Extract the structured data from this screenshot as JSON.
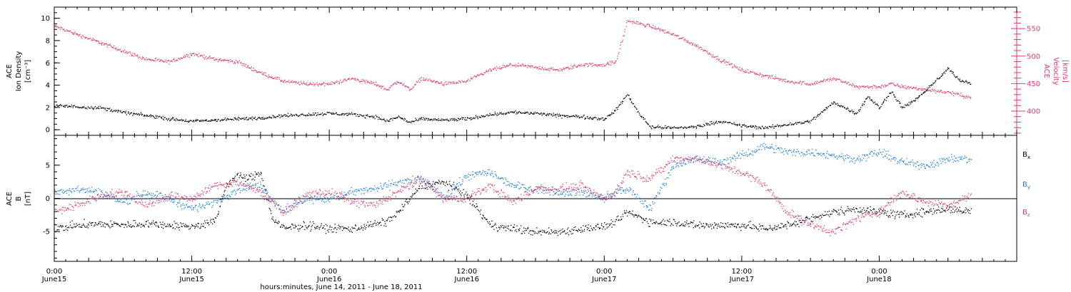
{
  "chart_data": [
    {
      "type": "scatter",
      "panel": "top",
      "ylabel_left": [
        "ACE",
        "Ion Density",
        "[cm⁻³]"
      ],
      "ylabel_right": [
        "ACE",
        "Velocity",
        "[km/s]"
      ],
      "x_range_hours": [
        0,
        84
      ],
      "left_ylim": [
        -0.5,
        11
      ],
      "left_yticks": [
        0,
        2,
        4,
        6,
        8,
        10
      ],
      "right_ylim": [
        356,
        589
      ],
      "right_yticks": [
        400,
        450,
        500,
        550
      ],
      "colors": {
        "density": "#000000",
        "velocity": "#e8376b"
      },
      "series": [
        {
          "name": "",
          "axis": "left",
          "x": [
            0,
            2,
            4,
            6,
            8,
            9,
            10,
            12,
            14,
            16,
            18,
            20,
            22,
            24,
            26,
            28,
            29,
            30,
            31,
            32,
            34,
            36,
            38,
            40,
            42,
            44,
            46,
            48,
            49,
            50,
            51,
            52,
            54,
            56,
            58,
            60,
            62,
            64,
            66,
            68,
            70,
            71,
            72,
            73,
            74,
            75.5,
            77,
            78,
            79,
            80
          ],
          "y": [
            2.2,
            2.1,
            2.0,
            1.6,
            1.3,
            1.2,
            1.0,
            0.8,
            0.9,
            1.0,
            1.1,
            1.3,
            1.4,
            1.5,
            1.4,
            1.2,
            0.8,
            1.2,
            0.7,
            1.0,
            0.9,
            1.0,
            1.4,
            1.6,
            1.5,
            1.3,
            1.2,
            1.0,
            1.8,
            3.2,
            1.5,
            0.3,
            0.2,
            0.3,
            0.8,
            0.4,
            0.2,
            0.5,
            0.8,
            2.5,
            1.5,
            3.0,
            2.0,
            3.5,
            2.0,
            3.0,
            4.5,
            5.5,
            4.5,
            4.2
          ]
        },
        {
          "name": "",
          "axis": "right",
          "x": [
            0,
            2,
            4,
            6,
            8,
            10,
            12,
            14,
            16,
            18,
            20,
            22,
            24,
            26,
            28,
            29,
            30,
            31,
            32,
            34,
            36,
            38,
            40,
            42,
            44,
            46,
            48,
            49,
            50,
            51,
            52,
            54,
            56,
            58,
            60,
            62,
            64,
            66,
            68,
            70,
            72,
            73,
            74,
            76,
            78,
            79,
            80
          ],
          "y": [
            555,
            540,
            525,
            510,
            495,
            490,
            505,
            495,
            490,
            470,
            455,
            450,
            450,
            460,
            450,
            440,
            455,
            440,
            460,
            450,
            455,
            475,
            485,
            480,
            475,
            485,
            485,
            490,
            565,
            560,
            555,
            540,
            520,
            495,
            475,
            465,
            455,
            450,
            460,
            445,
            445,
            450,
            445,
            440,
            435,
            430,
            425
          ]
        }
      ]
    },
    {
      "type": "scatter",
      "panel": "bottom",
      "ylabel": [
        "ACE",
        "B",
        "[nT]"
      ],
      "x_range_hours": [
        0,
        84
      ],
      "ylim": [
        -9.5,
        9.5
      ],
      "yticks": [
        -5,
        0,
        5
      ],
      "legend_position": "right",
      "series": [
        {
          "name": "Bx",
          "color": "#000000",
          "x": [
            0,
            2,
            4,
            6,
            8,
            10,
            12,
            14,
            15,
            16,
            17,
            18,
            19,
            20,
            22,
            24,
            26,
            28,
            29,
            30,
            32,
            34,
            36,
            38,
            40,
            42,
            44,
            46,
            48,
            49,
            50,
            52,
            54,
            56,
            58,
            60,
            62,
            64,
            66,
            68,
            70,
            72,
            74,
            76,
            78,
            80
          ],
          "y": [
            -4.5,
            -4.0,
            -3.8,
            -4.0,
            -3.7,
            -4.0,
            -4.2,
            -3.5,
            2.0,
            3.5,
            3.0,
            4.0,
            -3.0,
            -4.5,
            -4.0,
            -4.5,
            -4.5,
            -3.8,
            -3.5,
            -2.0,
            2.0,
            2.5,
            0.5,
            -4.0,
            -4.5,
            -5.0,
            -5.0,
            -4.5,
            -4.2,
            -3.5,
            -2.0,
            -3.5,
            -3.5,
            -4.0,
            -4.0,
            -4.0,
            -4.5,
            -4.0,
            -3.0,
            -2.0,
            -1.5,
            -2.0,
            -2.5,
            -2.0,
            -1.5,
            -2.0
          ]
        },
        {
          "name": "By",
          "color": "#1a7ee6",
          "x": [
            0,
            2,
            4,
            6,
            8,
            10,
            12,
            14,
            16,
            18,
            20,
            22,
            24,
            26,
            28,
            30,
            32,
            34,
            36,
            38,
            40,
            42,
            44,
            46,
            48,
            49,
            50,
            52,
            54,
            56,
            58,
            60,
            62,
            64,
            66,
            68,
            70,
            72,
            74,
            76,
            78,
            80
          ],
          "y": [
            1.0,
            1.5,
            1.0,
            -0.5,
            1.0,
            0.0,
            -1.5,
            -0.5,
            1.5,
            2.0,
            -2.0,
            0.0,
            0.0,
            1.0,
            1.5,
            2.5,
            3.0,
            0.0,
            3.5,
            4.0,
            2.0,
            1.5,
            1.0,
            1.0,
            0.0,
            1.0,
            1.5,
            -1.5,
            5.0,
            6.0,
            5.5,
            6.5,
            8.0,
            7.0,
            7.0,
            6.5,
            6.0,
            7.0,
            5.5,
            5.0,
            6.0,
            6.0
          ]
        },
        {
          "name": "Bz",
          "color": "#e8376b",
          "x": [
            0,
            2,
            4,
            6,
            8,
            10,
            12,
            14,
            16,
            18,
            20,
            22,
            24,
            26,
            28,
            30,
            32,
            34,
            36,
            38,
            40,
            42,
            44,
            46,
            48,
            49,
            50,
            52,
            54,
            56,
            58,
            60,
            62,
            64,
            66,
            68,
            70,
            72,
            74,
            76,
            78,
            80
          ],
          "y": [
            -2.0,
            -1.0,
            0.5,
            1.0,
            -1.0,
            0.5,
            0.0,
            2.0,
            2.5,
            1.0,
            -2.0,
            0.5,
            1.0,
            -0.5,
            -1.0,
            1.0,
            3.0,
            0.0,
            0.0,
            2.0,
            -0.5,
            1.5,
            1.5,
            2.0,
            0.0,
            1.0,
            4.0,
            3.0,
            6.0,
            6.0,
            5.0,
            4.0,
            2.0,
            -2.0,
            -4.0,
            -5.0,
            -3.0,
            -2.0,
            1.0,
            -0.5,
            -1.0,
            0.5
          ]
        }
      ]
    }
  ],
  "x_axis": {
    "ticks": [
      {
        "hours": 0,
        "label": "0:00",
        "date": "June15"
      },
      {
        "hours": 12,
        "label": "12:00",
        "date": "June15"
      },
      {
        "hours": 24,
        "label": "0:00",
        "date": "June16"
      },
      {
        "hours": 36,
        "label": "12:00",
        "date": "June16"
      },
      {
        "hours": 48,
        "label": "0:00",
        "date": "June17"
      },
      {
        "hours": 60,
        "label": "12:00",
        "date": "June17"
      },
      {
        "hours": 72,
        "label": "0:00",
        "date": "June18"
      }
    ],
    "xlabel": "hours:minutes, June 14, 2011 - June 18, 2011"
  }
}
